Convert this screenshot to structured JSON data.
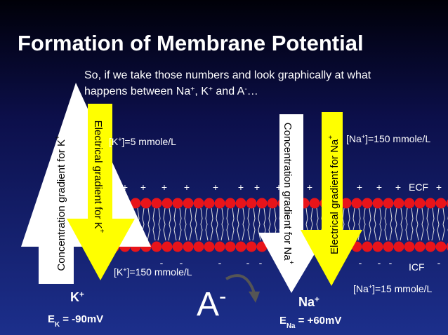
{
  "title": "Formation of Membrane Potential",
  "intro": [
    [
      {
        "t": "So, if we take those numbers and look graphically at what"
      }
    ],
    [
      {
        "t": "happens between Na"
      },
      {
        "t": "+",
        "sup": true
      },
      {
        "t": ", K"
      },
      {
        "t": "+",
        "sup": true
      },
      {
        "t": " and A"
      },
      {
        "t": "-",
        "sup": true
      },
      {
        "t": "…"
      }
    ]
  ],
  "arrows": {
    "k_conc": [
      {
        "t": "Concentration gradient for K"
      },
      {
        "t": "+",
        "sup": true
      }
    ],
    "k_elec": [
      {
        "t": "Electrical gradient for K"
      },
      {
        "t": "+",
        "sup": true
      }
    ],
    "na_conc": [
      {
        "t": "Concentration gradient for Na"
      },
      {
        "t": "+",
        "sup": true
      }
    ],
    "na_elec": [
      {
        "t": "Electrical gradient for Na"
      },
      {
        "t": "+",
        "sup": true
      }
    ]
  },
  "concentrations": {
    "k_out": [
      {
        "t": "[K"
      },
      {
        "t": "+",
        "sup": true
      },
      {
        "t": "]=5 mmole/L"
      }
    ],
    "na_out": [
      {
        "t": "[Na"
      },
      {
        "t": "+",
        "sup": true
      },
      {
        "t": "]=150 mmole/L"
      }
    ],
    "k_in": [
      {
        "t": "[K"
      },
      {
        "t": "+",
        "sup": true
      },
      {
        "t": "]=150 mmole/L"
      }
    ],
    "na_in": [
      {
        "t": "[Na"
      },
      {
        "t": "+",
        "sup": true
      },
      {
        "t": "]=15 mmole/L"
      }
    ]
  },
  "compartments": {
    "ecf": [
      {
        "t": "ECF"
      }
    ],
    "icf": [
      {
        "t": "ICF"
      }
    ]
  },
  "charges": {
    "ecf": [
      "+",
      "+",
      "+",
      "+",
      "+",
      "+",
      "+",
      "+",
      "+",
      "+",
      "+",
      "+",
      "+"
    ],
    "icf": [
      "-",
      "-",
      "-",
      "-",
      "-",
      "-",
      "-",
      "-",
      "-"
    ]
  },
  "ions": {
    "k": [
      {
        "t": "K"
      },
      {
        "t": "+",
        "sup": true
      }
    ],
    "a": [
      {
        "t": "A"
      },
      {
        "t": "-",
        "sup": true
      }
    ],
    "na": [
      {
        "t": "Na"
      },
      {
        "t": "+",
        "sup": true
      }
    ]
  },
  "potentials": {
    "ek": [
      {
        "t": "E"
      },
      {
        "t": "K",
        "sub": true
      },
      {
        "t": " = -90mV"
      }
    ],
    "ena": [
      {
        "t": "E"
      },
      {
        "t": "Na",
        "sub": true
      },
      {
        "t": " = +60mV"
      }
    ]
  }
}
